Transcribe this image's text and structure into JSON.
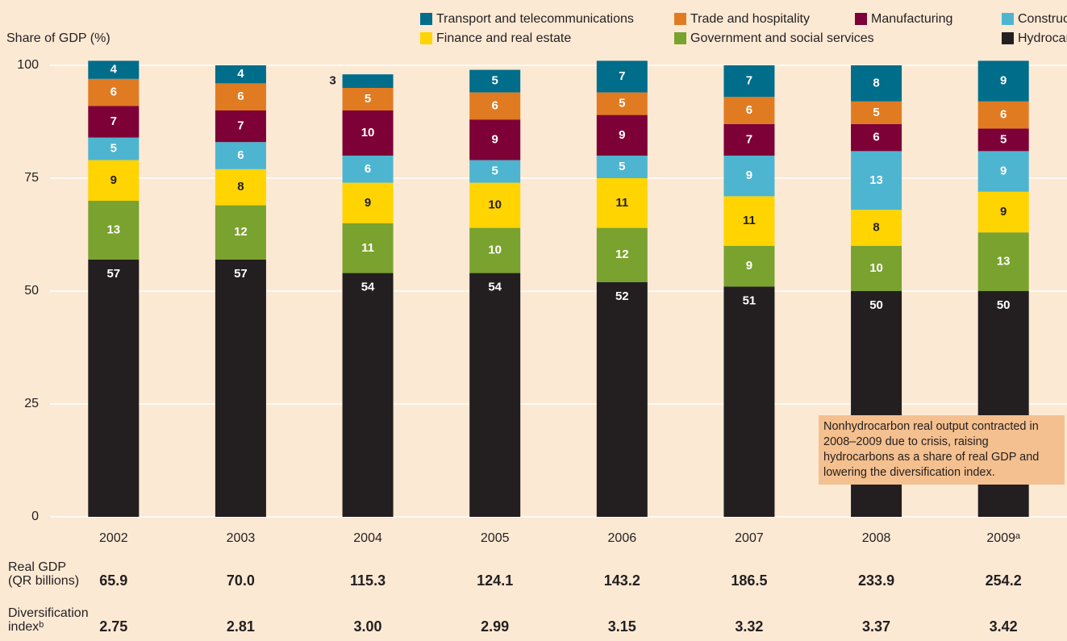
{
  "chart_data": {
    "type": "stacked_bar",
    "y_label": "Share of GDP (%)",
    "categories": [
      "2002",
      "2003",
      "2004",
      "2005",
      "2006",
      "2007",
      "2008",
      "2009ᵃ"
    ],
    "series": [
      {
        "name": "Hydrocarbons",
        "color": "#231f20",
        "values": [
          57,
          57,
          54,
          54,
          52,
          51,
          50,
          50
        ]
      },
      {
        "name": "Government and social services",
        "color": "#7aa22f",
        "values": [
          13,
          12,
          11,
          10,
          12,
          9,
          10,
          13
        ]
      },
      {
        "name": "Finance and real estate",
        "color": "#ffd400",
        "values": [
          9,
          8,
          9,
          10,
          11,
          11,
          8,
          9
        ]
      },
      {
        "name": "Construction",
        "color": "#4db5d0",
        "values": [
          5,
          6,
          6,
          5,
          5,
          9,
          13,
          9
        ]
      },
      {
        "name": "Manufacturing",
        "color": "#7d0036",
        "values": [
          7,
          7,
          10,
          9,
          9,
          7,
          6,
          5
        ]
      },
      {
        "name": "Trade and hospitality",
        "color": "#e07b22",
        "values": [
          6,
          6,
          5,
          6,
          5,
          6,
          5,
          6
        ]
      },
      {
        "name": "Transport and telecommunications",
        "color": "#006d8a",
        "values": [
          4,
          4,
          3,
          5,
          7,
          7,
          8,
          9
        ]
      }
    ],
    "ylim": [
      0,
      100
    ],
    "yticks": [
      0,
      25,
      50,
      75,
      100
    ],
    "grid": true,
    "annotation": "Nonhydrocarbon real output contracted in 2008–2009 due to crisis, raising hydrocarbons as a share of real GDP and lowering the diversification index."
  },
  "table": {
    "rows": [
      {
        "label": [
          "Real GDP",
          "(QR billions)"
        ],
        "values": [
          "65.9",
          "70.0",
          "115.3",
          "124.1",
          "143.2",
          "186.5",
          "233.9",
          "254.2"
        ]
      },
      {
        "label": [
          "Diversification",
          "indexᵇ"
        ],
        "values": [
          "2.75",
          "2.81",
          "3.00",
          "2.99",
          "3.15",
          "3.32",
          "3.37",
          "3.42"
        ]
      }
    ]
  }
}
